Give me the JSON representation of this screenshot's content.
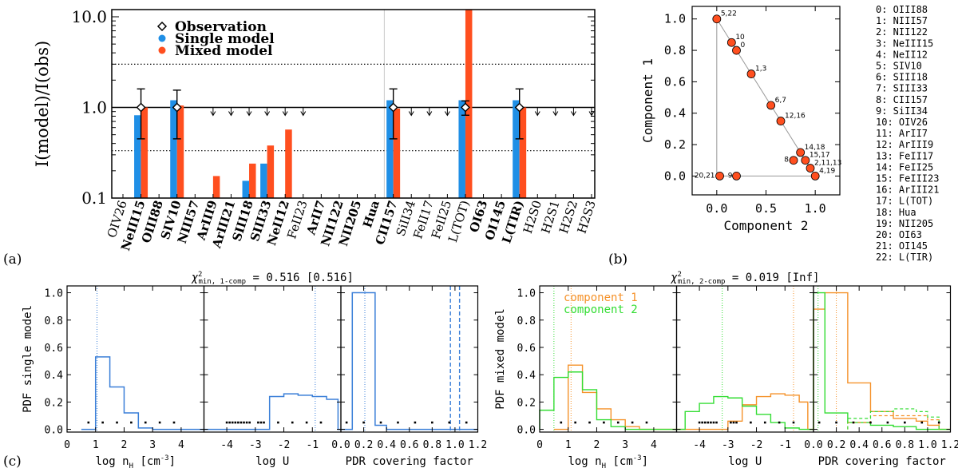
{
  "colors": {
    "single": "#1f8fe6",
    "mixed": "#ff4f1f",
    "comp1": "#f5922a",
    "comp2": "#33dd33",
    "blue_line": "#3a7fd8"
  },
  "panel_labels": {
    "a": "(a)",
    "b": "(b)",
    "c": "(c)"
  },
  "chart_data": [
    {
      "type": "bar",
      "id": "a",
      "title": "",
      "ylabel": "I(model)/I(obs)",
      "yscale": "log",
      "ylim": [
        0.1,
        12
      ],
      "yticks": [
        "10.0",
        "1.0",
        "0.1"
      ],
      "legend": [
        "Observation",
        "Single model",
        "Mixed model"
      ],
      "reference_lines": [
        1.0,
        3.0,
        0.333
      ],
      "categories": [
        "OIV26",
        "NeIII15",
        "OIII88",
        "SIV10",
        "NIII57",
        "ArIII9",
        "ArIII21",
        "SIII18",
        "SIII33",
        "NeII12",
        "FeII23",
        "ArII7",
        "NII122",
        "NII205",
        "Hua",
        "CII157",
        "SiII34",
        "FeII17",
        "FeII25",
        "L(TOT)",
        "OI63",
        "OI145",
        "L(TIR)",
        "H2S0",
        "H2S1",
        "H2S2",
        "H2S3"
      ],
      "bold": [
        false,
        true,
        true,
        true,
        true,
        true,
        true,
        true,
        true,
        true,
        false,
        true,
        true,
        true,
        true,
        true,
        false,
        false,
        false,
        false,
        true,
        true,
        true,
        false,
        false,
        false,
        false
      ],
      "series": [
        {
          "name": "Single model",
          "values": [
            null,
            0.82,
            null,
            1.2,
            null,
            null,
            null,
            0.155,
            0.24,
            null,
            null,
            null,
            null,
            null,
            null,
            1.2,
            null,
            null,
            null,
            1.2,
            null,
            null,
            1.2,
            null,
            null,
            null,
            null
          ]
        },
        {
          "name": "Mixed model",
          "values": [
            null,
            1.0,
            null,
            1.05,
            null,
            0.175,
            null,
            0.24,
            0.38,
            0.57,
            null,
            null,
            null,
            null,
            null,
            0.97,
            null,
            null,
            null,
            12,
            null,
            null,
            1.0,
            null,
            null,
            null,
            null
          ]
        }
      ],
      "observations": [
        {
          "category": "NeIII15",
          "value": 1.0,
          "low": 0.45,
          "high": 1.6
        },
        {
          "category": "SIV10",
          "value": 1.0,
          "low": 0.45,
          "high": 1.55
        },
        {
          "category": "CII157",
          "value": 1.0,
          "low": 0.45,
          "high": 1.6
        },
        {
          "category": "L(TOT)",
          "value": 1.0,
          "low": 0.82,
          "high": 1.18
        },
        {
          "category": "L(TIR)",
          "value": 1.0,
          "low": 0.45,
          "high": 1.6
        }
      ],
      "upper_limits": [
        "ArIII9",
        "ArIII21",
        "SIII18",
        "SIII33",
        "NeII12",
        "FeII23",
        "SiII34",
        "FeII17",
        "FeII25",
        "H2S0",
        "H2S1",
        "H2S2",
        "H2S3"
      ]
    },
    {
      "type": "scatter",
      "id": "b",
      "xlabel": "Component 2",
      "ylabel": "Component 1",
      "xlim": [
        -0.25,
        1.25
      ],
      "ylim": [
        -0.12,
        1.08
      ],
      "xticks": [
        "0.0",
        "0.5",
        "1.0"
      ],
      "yticks": [
        "0.0",
        "0.2",
        "0.4",
        "0.6",
        "0.8",
        "1.0"
      ],
      "triangle": [
        [
          0,
          1
        ],
        [
          0,
          0
        ],
        [
          1,
          0
        ]
      ],
      "points": [
        {
          "label": "5,22",
          "x": 0.0,
          "y": 1.0
        },
        {
          "label": "10",
          "x": 0.15,
          "y": 0.85
        },
        {
          "label": "0",
          "x": 0.2,
          "y": 0.8
        },
        {
          "label": "1,3",
          "x": 0.35,
          "y": 0.65
        },
        {
          "label": "6,7",
          "x": 0.55,
          "y": 0.45
        },
        {
          "label": "12,16",
          "x": 0.65,
          "y": 0.35
        },
        {
          "label": "14,18",
          "x": 0.85,
          "y": 0.15
        },
        {
          "label": "8",
          "x": 0.78,
          "y": 0.1
        },
        {
          "label": "15,17",
          "x": 0.9,
          "y": 0.1
        },
        {
          "label": "2,11,13",
          "x": 0.95,
          "y": 0.05
        },
        {
          "label": "4,19",
          "x": 1.0,
          "y": 0.0
        },
        {
          "label": "20,21",
          "x": 0.03,
          "y": 0.0
        },
        {
          "label": "9",
          "x": 0.2,
          "y": 0.0
        }
      ],
      "index_legend": [
        "0: OIII88",
        "1: NIII57",
        "2: NII122",
        "3: NeIII15",
        "4: NeII12",
        "5: SIV10",
        "6: SIII18",
        "7: SIII33",
        "8: CII157",
        "9: SiII34",
        "10: OIV26",
        "11:   ArII7",
        "12: ArIII9",
        "13: FeII17",
        "14: FeII25",
        "15: FeIII23",
        "16: ArIII21",
        "17: L(TOT)",
        "18:   Hua",
        "19: NII205",
        "20: OI63",
        "21: OI145",
        "22: L(TIR)"
      ]
    },
    {
      "type": "histogram",
      "id": "c-left",
      "title_prefix": "χ",
      "title_sub": "min, 1-comp",
      "title_value": " = 0.516 [0.516]",
      "ylabel": "PDF single model",
      "yticks": [
        "0.0",
        "0.2",
        "0.4",
        "0.6",
        "0.8",
        "1.0"
      ],
      "ylim": [
        -0.02,
        1.05
      ],
      "subpanels": [
        {
          "xlabel_main": "log n",
          "xlabel_sub": "H",
          "xlabel_tail": " [cm",
          "xlabel_sup": "-3",
          "xlabel_end": "]",
          "xlim": [
            0,
            4.8
          ],
          "xticks": [
            "0",
            "1",
            "2",
            "3",
            "4"
          ],
          "tick_values": [
            0,
            1,
            2,
            3,
            4
          ],
          "steps": [
            {
              "x0": 0.5,
              "x1": 1.0,
              "y": 0.0
            },
            {
              "x0": 1.0,
              "x1": 1.5,
              "y": 0.53
            },
            {
              "x0": 1.5,
              "x1": 2.0,
              "y": 0.31
            },
            {
              "x0": 2.0,
              "x1": 2.5,
              "y": 0.12
            },
            {
              "x0": 2.5,
              "x1": 3.0,
              "y": 0.01
            },
            {
              "x0": 3.0,
              "x1": 4.8,
              "y": 0.0
            }
          ],
          "vlines": [
            1.05
          ],
          "dots": [
            0.75,
            1.25,
            1.75,
            2.25,
            2.75,
            3.25,
            3.75
          ]
        },
        {
          "xlabel_main": "log U",
          "xlim": [
            -4.8,
            0
          ],
          "xticks": [
            "-4",
            "-3",
            "-2",
            "-1"
          ],
          "tick_values": [
            -4,
            -3,
            -2,
            -1
          ],
          "steps": [
            {
              "x0": -4.8,
              "x1": -2.5,
              "y": 0.0
            },
            {
              "x0": -2.5,
              "x1": -2.0,
              "y": 0.24
            },
            {
              "x0": -2.0,
              "x1": -1.5,
              "y": 0.26
            },
            {
              "x0": -1.5,
              "x1": -1.0,
              "y": 0.25
            },
            {
              "x0": -1.0,
              "x1": -0.5,
              "y": 0.24
            },
            {
              "x0": -0.5,
              "x1": -0.1,
              "y": 0.22
            },
            {
              "x0": -0.1,
              "x1": 0,
              "y": 0.0
            }
          ],
          "vlines": [
            -0.9
          ],
          "dots": [
            -4.0,
            -3.9,
            -3.8,
            -3.7,
            -3.6,
            -3.5,
            -3.4,
            -3.3,
            -3.2,
            -2.9,
            -2.8,
            -2.7,
            -2.2,
            -1.7,
            -1.2,
            -0.7
          ]
        },
        {
          "xlabel_main": "PDR covering factor",
          "xlim": [
            0,
            1.2
          ],
          "xticks": [
            "0.0",
            "0.2",
            "0.4",
            "0.6",
            "0.8",
            "1.0",
            "1.2"
          ],
          "tick_values": [
            0,
            0.2,
            0.4,
            0.6,
            0.8,
            1.0,
            1.2
          ],
          "steps": [
            {
              "x0": 0.0,
              "x1": 0.1,
              "y": 0.0
            },
            {
              "x0": 0.1,
              "x1": 0.3,
              "y": 1.0
            },
            {
              "x0": 0.3,
              "x1": 0.4,
              "y": 0.03
            },
            {
              "x0": 0.4,
              "x1": 1.2,
              "y": 0.0
            }
          ],
          "vlines": [
            0.21
          ],
          "dashed_vlines": [
            0.96,
            1.04
          ],
          "dots": [
            0.05,
            0.2,
            0.35,
            0.5,
            0.65,
            0.8,
            0.95,
            1.1
          ]
        }
      ]
    },
    {
      "type": "histogram",
      "id": "c-right",
      "title_prefix": "χ",
      "title_sub": "min, 2-comp",
      "title_value": " = 0.019 [Inf]",
      "ylabel": "PDF mixed model",
      "legend": [
        "component 1",
        "component 2"
      ],
      "yticks": [
        "0.0",
        "0.2",
        "0.4",
        "0.6",
        "0.8",
        "1.0"
      ],
      "ylim": [
        -0.02,
        1.05
      ],
      "subpanels": [
        {
          "xlabel_main": "log n",
          "xlabel_sub": "H",
          "xlabel_tail": " [cm",
          "xlabel_sup": "-3",
          "xlabel_end": "]",
          "xlim": [
            0,
            4.8
          ],
          "xticks": [
            "0",
            "1",
            "2",
            "3",
            "4"
          ],
          "tick_values": [
            0,
            1,
            2,
            3,
            4
          ],
          "comp1": [
            {
              "x0": 0.5,
              "x1": 1.0,
              "y": 0.0
            },
            {
              "x0": 1.0,
              "x1": 1.5,
              "y": 0.47
            },
            {
              "x0": 1.5,
              "x1": 2.0,
              "y": 0.27
            },
            {
              "x0": 2.0,
              "x1": 2.5,
              "y": 0.15
            },
            {
              "x0": 2.5,
              "x1": 3.0,
              "y": 0.07
            },
            {
              "x0": 3.0,
              "x1": 3.5,
              "y": 0.02
            },
            {
              "x0": 3.5,
              "x1": 4.8,
              "y": 0.0
            }
          ],
          "comp2": [
            {
              "x0": 0.0,
              "x1": 0.5,
              "y": 0.14
            },
            {
              "x0": 0.5,
              "x1": 1.0,
              "y": 0.38
            },
            {
              "x0": 1.0,
              "x1": 1.5,
              "y": 0.42
            },
            {
              "x0": 1.5,
              "x1": 2.0,
              "y": 0.29
            },
            {
              "x0": 2.0,
              "x1": 2.5,
              "y": 0.07
            },
            {
              "x0": 2.5,
              "x1": 3.0,
              "y": 0.02
            },
            {
              "x0": 3.0,
              "x1": 4.8,
              "y": 0.0
            }
          ],
          "vlines_comp1": [
            1.1
          ],
          "vlines_comp2": [
            0.5
          ],
          "dots": [
            0.75,
            1.25,
            1.75,
            2.25,
            2.75,
            3.25,
            3.75
          ]
        },
        {
          "xlabel_main": "log U",
          "xlim": [
            -4.8,
            0
          ],
          "xticks": [
            "-4",
            "-3",
            "-2",
            "-1"
          ],
          "tick_values": [
            -4,
            -3,
            -2,
            -1
          ],
          "comp1": [
            {
              "x0": -4.8,
              "x1": -3.0,
              "y": 0.0
            },
            {
              "x0": -3.0,
              "x1": -2.5,
              "y": 0.06
            },
            {
              "x0": -2.5,
              "x1": -2.0,
              "y": 0.18
            },
            {
              "x0": -2.0,
              "x1": -1.5,
              "y": 0.24
            },
            {
              "x0": -1.5,
              "x1": -1.0,
              "y": 0.26
            },
            {
              "x0": -1.0,
              "x1": -0.5,
              "y": 0.25
            },
            {
              "x0": -0.5,
              "x1": -0.2,
              "y": 0.2
            },
            {
              "x0": -0.2,
              "x1": 0,
              "y": 0.0
            }
          ],
          "comp2": [
            {
              "x0": -4.8,
              "x1": -4.5,
              "y": 0.0
            },
            {
              "x0": -4.5,
              "x1": -4.0,
              "y": 0.13
            },
            {
              "x0": -4.0,
              "x1": -3.5,
              "y": 0.19
            },
            {
              "x0": -3.5,
              "x1": -3.0,
              "y": 0.24
            },
            {
              "x0": -3.0,
              "x1": -2.5,
              "y": 0.23
            },
            {
              "x0": -2.5,
              "x1": -2.0,
              "y": 0.17
            },
            {
              "x0": -2.0,
              "x1": -1.5,
              "y": 0.11
            },
            {
              "x0": -1.5,
              "x1": -1.0,
              "y": 0.05
            },
            {
              "x0": -1.0,
              "x1": -0.5,
              "y": 0.01
            },
            {
              "x0": -0.5,
              "x1": 0,
              "y": 0.0
            }
          ],
          "vlines_comp1": [
            -0.7
          ],
          "vlines_comp2": [
            -3.2
          ],
          "dots": [
            -4.0,
            -3.9,
            -3.8,
            -3.7,
            -3.6,
            -3.5,
            -3.4,
            -2.9,
            -2.8,
            -2.7,
            -2.2,
            -1.7,
            -1.2,
            -0.7
          ]
        },
        {
          "xlabel_main": "PDR covering factor",
          "xlim": [
            0,
            1.2
          ],
          "xticks": [
            "0.0",
            "0.2",
            "0.4",
            "0.6",
            "0.8",
            "1.0",
            "1.2"
          ],
          "tick_values": [
            0,
            0.2,
            0.4,
            0.6,
            0.8,
            1.0,
            1.2
          ],
          "comp1": [
            {
              "x0": 0.0,
              "x1": 0.1,
              "y": 0.88
            },
            {
              "x0": 0.1,
              "x1": 0.3,
              "y": 1.0
            },
            {
              "x0": 0.3,
              "x1": 0.5,
              "y": 0.34
            },
            {
              "x0": 0.5,
              "x1": 0.7,
              "y": 0.13
            },
            {
              "x0": 0.7,
              "x1": 0.9,
              "y": 0.08
            },
            {
              "x0": 0.9,
              "x1": 1.0,
              "y": 0.06
            },
            {
              "x0": 1.0,
              "x1": 1.1,
              "y": 0.03
            },
            {
              "x0": 1.1,
              "x1": 1.2,
              "y": 0.0
            }
          ],
          "comp2": [
            {
              "x0": 0.0,
              "x1": 0.1,
              "y": 1.0
            },
            {
              "x0": 0.1,
              "x1": 0.3,
              "y": 0.12
            },
            {
              "x0": 0.3,
              "x1": 0.5,
              "y": 0.05
            },
            {
              "x0": 0.5,
              "x1": 0.7,
              "y": 0.03
            },
            {
              "x0": 0.7,
              "x1": 0.9,
              "y": 0.02
            },
            {
              "x0": 0.9,
              "x1": 1.2,
              "y": 0.0
            }
          ],
          "dashed_comp1": [
            {
              "x0": 0.3,
              "x1": 0.5,
              "y": 0.05
            },
            {
              "x0": 0.5,
              "x1": 0.7,
              "y": 0.1
            },
            {
              "x0": 0.7,
              "x1": 0.9,
              "y": 0.1
            },
            {
              "x0": 0.9,
              "x1": 1.0,
              "y": 0.1
            },
            {
              "x0": 1.0,
              "x1": 1.1,
              "y": 0.07
            }
          ],
          "dashed_comp2": [
            {
              "x0": 0.3,
              "x1": 0.5,
              "y": 0.08
            },
            {
              "x0": 0.5,
              "x1": 0.7,
              "y": 0.13
            },
            {
              "x0": 0.7,
              "x1": 0.9,
              "y": 0.15
            },
            {
              "x0": 0.9,
              "x1": 1.0,
              "y": 0.13
            },
            {
              "x0": 1.0,
              "x1": 1.1,
              "y": 0.09
            }
          ],
          "vlines_comp1": [
            0.2
          ],
          "vlines_comp2": [
            0.04
          ],
          "dots": [
            0.05,
            0.2,
            0.35,
            0.5,
            0.65,
            0.8,
            0.95,
            1.1
          ]
        }
      ]
    }
  ]
}
